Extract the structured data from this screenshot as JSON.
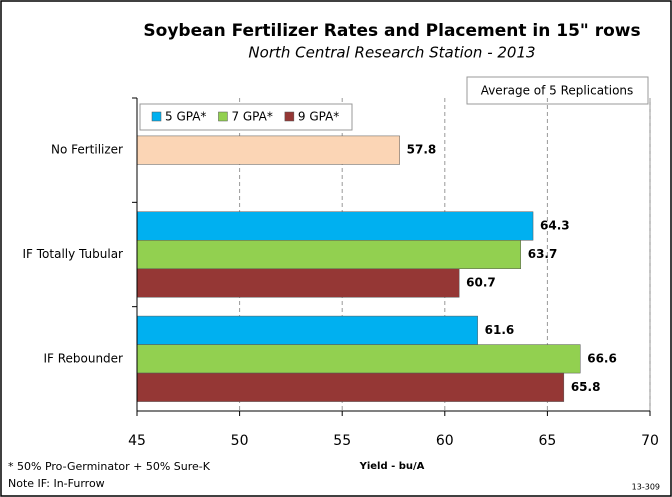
{
  "chart_data": {
    "type": "hbar",
    "title": "Soybean Fertilizer Rates and Placement in 15\" rows",
    "subtitle": "North Central Research Station - 2013",
    "annotation": "Average of 5 Replications",
    "x_label": "Yield - bu/A",
    "footnotes": [
      "* 50% Pro-Germinator + 50% Sure-K",
      "Note IF: In-Furrow"
    ],
    "code": "13-309",
    "categories": [
      "No Fertilizer",
      "IF Totally Tubular",
      "IF Rebounder"
    ],
    "series": [
      {
        "name": "5 GPA*",
        "color": "#00b0f0",
        "values": [
          null,
          64.3,
          61.6
        ]
      },
      {
        "name": "7 GPA*",
        "color": "#92d050",
        "values": [
          null,
          63.7,
          66.6
        ]
      },
      {
        "name": "9 GPA*",
        "color": "#953735",
        "values": [
          null,
          60.7,
          65.8
        ]
      },
      {
        "color": "#fbd5b5",
        "values": [
          57.8,
          null,
          null
        ]
      }
    ],
    "xlim": [
      45,
      70
    ],
    "xticks": [
      45,
      50,
      55,
      60,
      65,
      70
    ],
    "grid": true
  }
}
